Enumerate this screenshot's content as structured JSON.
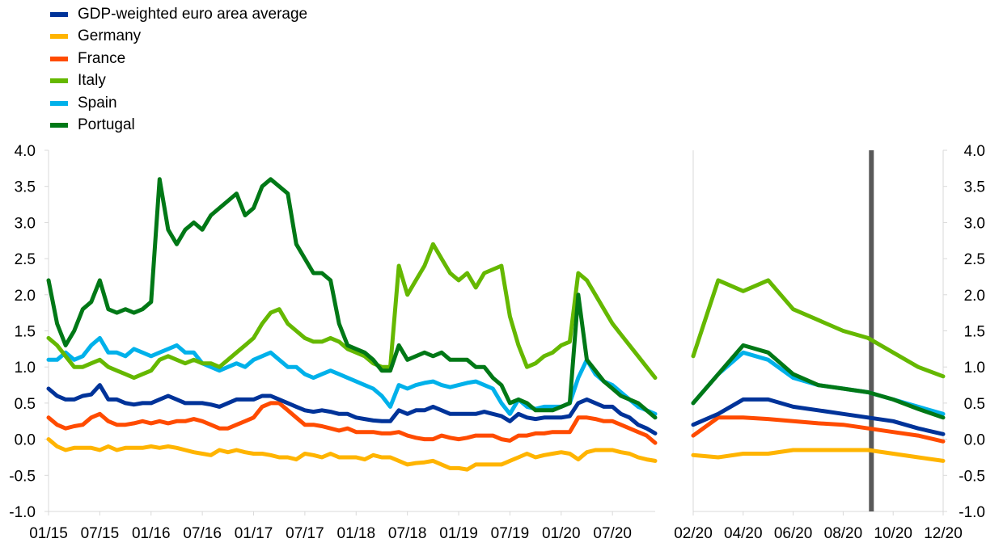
{
  "chart_data": {
    "type": "line",
    "legend": {
      "placement": "top-left",
      "entries": [
        "GDP-weighted euro area average",
        "Germany",
        "France",
        "Italy",
        "Spain",
        "Portugal"
      ]
    },
    "series": [
      {
        "name": "GDP-weighted euro area average",
        "color": "#003399"
      },
      {
        "name": "Germany",
        "color": "#FFB400"
      },
      {
        "name": "France",
        "color": "#FF4B00"
      },
      {
        "name": "Italy",
        "color": "#65B800"
      },
      {
        "name": "Spain",
        "color": "#00B1EA"
      },
      {
        "name": "Portugal",
        "color": "#007816"
      }
    ],
    "y_ticks": [
      "4.0",
      "3.5",
      "3.0",
      "2.5",
      "2.0",
      "1.5",
      "1.0",
      "0.5",
      "0.0",
      "-0.5",
      "-1.0"
    ],
    "ylim": [
      -1.0,
      4.0
    ],
    "grid": false,
    "panels": [
      {
        "name": "long-run",
        "x_ticks": [
          "01/15",
          "07/15",
          "01/16",
          "07/16",
          "01/17",
          "07/17",
          "01/18",
          "07/18",
          "01/19",
          "07/19",
          "01/20",
          "07/20"
        ],
        "xlim": [
          "2015-01",
          "2020-12"
        ],
        "x": [
          "2015-01",
          "2015-02",
          "2015-03",
          "2015-04",
          "2015-05",
          "2015-06",
          "2015-07",
          "2015-08",
          "2015-09",
          "2015-10",
          "2015-11",
          "2015-12",
          "2016-01",
          "2016-02",
          "2016-03",
          "2016-04",
          "2016-05",
          "2016-06",
          "2016-07",
          "2016-08",
          "2016-09",
          "2016-10",
          "2016-11",
          "2016-12",
          "2017-01",
          "2017-02",
          "2017-03",
          "2017-04",
          "2017-05",
          "2017-06",
          "2017-07",
          "2017-08",
          "2017-09",
          "2017-10",
          "2017-11",
          "2017-12",
          "2018-01",
          "2018-02",
          "2018-03",
          "2018-04",
          "2018-05",
          "2018-06",
          "2018-07",
          "2018-08",
          "2018-09",
          "2018-10",
          "2018-11",
          "2018-12",
          "2019-01",
          "2019-02",
          "2019-03",
          "2019-04",
          "2019-05",
          "2019-06",
          "2019-07",
          "2019-08",
          "2019-09",
          "2019-10",
          "2019-11",
          "2019-12",
          "2020-01",
          "2020-02",
          "2020-03",
          "2020-04",
          "2020-05",
          "2020-06",
          "2020-07",
          "2020-08",
          "2020-09",
          "2020-10",
          "2020-11",
          "2020-12"
        ],
        "values": {
          "GDP-weighted euro area average": [
            0.7,
            0.6,
            0.55,
            0.55,
            0.6,
            0.62,
            0.75,
            0.55,
            0.55,
            0.5,
            0.48,
            0.5,
            0.5,
            0.55,
            0.6,
            0.55,
            0.5,
            0.5,
            0.5,
            0.48,
            0.45,
            0.5,
            0.55,
            0.55,
            0.55,
            0.6,
            0.6,
            0.55,
            0.5,
            0.45,
            0.4,
            0.38,
            0.4,
            0.38,
            0.35,
            0.35,
            0.3,
            0.28,
            0.26,
            0.25,
            0.25,
            0.4,
            0.35,
            0.4,
            0.4,
            0.45,
            0.4,
            0.35,
            0.35,
            0.35,
            0.35,
            0.38,
            0.35,
            0.32,
            0.25,
            0.35,
            0.3,
            0.28,
            0.3,
            0.3,
            0.3,
            0.32,
            0.5,
            0.55,
            0.5,
            0.45,
            0.45,
            0.35,
            0.3,
            0.2,
            0.15,
            0.08
          ],
          "Germany": [
            0.0,
            -0.1,
            -0.15,
            -0.12,
            -0.12,
            -0.12,
            -0.15,
            -0.1,
            -0.15,
            -0.12,
            -0.12,
            -0.12,
            -0.1,
            -0.12,
            -0.1,
            -0.12,
            -0.15,
            -0.18,
            -0.2,
            -0.22,
            -0.15,
            -0.18,
            -0.15,
            -0.18,
            -0.2,
            -0.2,
            -0.22,
            -0.25,
            -0.25,
            -0.28,
            -0.2,
            -0.22,
            -0.25,
            -0.2,
            -0.25,
            -0.25,
            -0.25,
            -0.28,
            -0.22,
            -0.25,
            -0.25,
            -0.3,
            -0.35,
            -0.33,
            -0.32,
            -0.3,
            -0.35,
            -0.4,
            -0.4,
            -0.42,
            -0.35,
            -0.35,
            -0.35,
            -0.35,
            -0.3,
            -0.25,
            -0.2,
            -0.25,
            -0.22,
            -0.2,
            -0.18,
            -0.2,
            -0.28,
            -0.18,
            -0.15,
            -0.15,
            -0.15,
            -0.18,
            -0.2,
            -0.25,
            -0.28,
            -0.3
          ],
          "France": [
            0.3,
            0.2,
            0.15,
            0.18,
            0.2,
            0.3,
            0.35,
            0.25,
            0.2,
            0.2,
            0.22,
            0.25,
            0.22,
            0.25,
            0.22,
            0.25,
            0.25,
            0.28,
            0.25,
            0.2,
            0.15,
            0.15,
            0.2,
            0.25,
            0.3,
            0.45,
            0.5,
            0.5,
            0.4,
            0.3,
            0.2,
            0.2,
            0.18,
            0.15,
            0.12,
            0.15,
            0.1,
            0.1,
            0.1,
            0.08,
            0.08,
            0.1,
            0.05,
            0.02,
            0.0,
            0.0,
            0.05,
            0.02,
            0.0,
            0.02,
            0.05,
            0.05,
            0.05,
            0.0,
            -0.02,
            0.05,
            0.05,
            0.08,
            0.08,
            0.1,
            0.1,
            0.1,
            0.3,
            0.3,
            0.28,
            0.25,
            0.25,
            0.2,
            0.15,
            0.1,
            0.05,
            -0.05
          ],
          "Italy": [
            1.4,
            1.3,
            1.15,
            1.0,
            1.0,
            1.05,
            1.1,
            1.0,
            0.95,
            0.9,
            0.85,
            0.9,
            0.95,
            1.1,
            1.15,
            1.1,
            1.05,
            1.1,
            1.05,
            1.05,
            1.0,
            1.1,
            1.2,
            1.3,
            1.4,
            1.6,
            1.75,
            1.8,
            1.6,
            1.5,
            1.4,
            1.35,
            1.35,
            1.4,
            1.35,
            1.25,
            1.2,
            1.15,
            1.05,
            1.0,
            1.0,
            2.4,
            2.0,
            2.2,
            2.4,
            2.7,
            2.5,
            2.3,
            2.2,
            2.3,
            2.1,
            2.3,
            2.35,
            2.4,
            1.7,
            1.3,
            1.0,
            1.05,
            1.15,
            1.2,
            1.3,
            1.35,
            2.3,
            2.2,
            2.0,
            1.8,
            1.6,
            1.45,
            1.3,
            1.15,
            1.0,
            0.85
          ],
          "Spain": [
            1.1,
            1.1,
            1.2,
            1.1,
            1.15,
            1.3,
            1.4,
            1.2,
            1.2,
            1.15,
            1.25,
            1.2,
            1.15,
            1.2,
            1.25,
            1.3,
            1.2,
            1.2,
            1.05,
            1.0,
            0.95,
            1.0,
            1.05,
            1.0,
            1.1,
            1.15,
            1.2,
            1.1,
            1.0,
            1.0,
            0.9,
            0.85,
            0.9,
            0.95,
            0.9,
            0.85,
            0.8,
            0.75,
            0.7,
            0.6,
            0.45,
            0.75,
            0.7,
            0.75,
            0.78,
            0.8,
            0.75,
            0.72,
            0.75,
            0.78,
            0.8,
            0.75,
            0.7,
            0.5,
            0.35,
            0.55,
            0.45,
            0.42,
            0.45,
            0.45,
            0.45,
            0.5,
            0.85,
            1.1,
            0.9,
            0.8,
            0.75,
            0.65,
            0.55,
            0.45,
            0.4,
            0.35
          ],
          "Portugal": [
            2.2,
            1.6,
            1.3,
            1.5,
            1.8,
            1.9,
            2.2,
            1.8,
            1.75,
            1.8,
            1.75,
            1.8,
            1.9,
            3.6,
            2.9,
            2.7,
            2.9,
            3.0,
            2.9,
            3.1,
            3.2,
            3.3,
            3.4,
            3.1,
            3.2,
            3.5,
            3.6,
            3.5,
            3.4,
            2.7,
            2.5,
            2.3,
            2.3,
            2.2,
            1.6,
            1.3,
            1.25,
            1.2,
            1.1,
            0.95,
            0.95,
            1.3,
            1.1,
            1.15,
            1.2,
            1.15,
            1.2,
            1.1,
            1.1,
            1.1,
            1.0,
            1.0,
            0.85,
            0.75,
            0.5,
            0.55,
            0.5,
            0.4,
            0.4,
            0.4,
            0.45,
            0.5,
            2.0,
            1.1,
            0.95,
            0.8,
            0.7,
            0.6,
            0.55,
            0.5,
            0.4,
            0.3
          ]
        }
      },
      {
        "name": "2020-zoom",
        "x_ticks": [
          "02/20",
          "04/20",
          "06/20",
          "08/20",
          "10/20",
          "12/20"
        ],
        "xlim": [
          "2020-02",
          "2020-12"
        ],
        "vertical_marker": "2020-09",
        "x": [
          "2020-02",
          "2020-03",
          "2020-04",
          "2020-05",
          "2020-06",
          "2020-07",
          "2020-08",
          "2020-09",
          "2020-10",
          "2020-11",
          "2020-12"
        ],
        "values": {
          "GDP-weighted euro area average": [
            0.2,
            0.35,
            0.55,
            0.55,
            0.45,
            0.4,
            0.35,
            0.3,
            0.25,
            0.15,
            0.07
          ],
          "Germany": [
            -0.22,
            -0.25,
            -0.2,
            -0.2,
            -0.15,
            -0.15,
            -0.15,
            -0.15,
            -0.2,
            -0.25,
            -0.3
          ],
          "France": [
            0.05,
            0.3,
            0.3,
            0.28,
            0.25,
            0.22,
            0.2,
            0.15,
            0.1,
            0.05,
            -0.03
          ],
          "Italy": [
            1.15,
            2.2,
            2.05,
            2.2,
            1.8,
            1.65,
            1.5,
            1.4,
            1.2,
            1.0,
            0.87
          ],
          "Spain": [
            0.5,
            0.9,
            1.2,
            1.1,
            0.85,
            0.75,
            0.7,
            0.65,
            0.55,
            0.45,
            0.35
          ],
          "Portugal": [
            0.5,
            0.9,
            1.3,
            1.2,
            0.9,
            0.75,
            0.7,
            0.65,
            0.55,
            0.42,
            0.3
          ]
        }
      }
    ]
  }
}
